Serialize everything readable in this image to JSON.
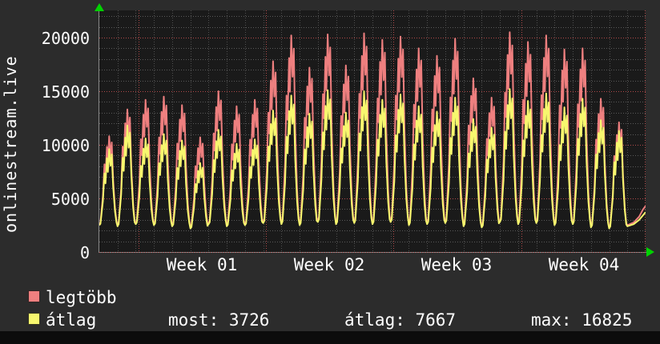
{
  "window": {
    "background": "#0c0c0c",
    "canvas_background": "#2c2c2c",
    "plot_background": "#1a1a1a"
  },
  "vertical_label": "onlinestream.live",
  "y_axis": {
    "ticks": [
      "20000",
      "15000",
      "10000",
      "5000",
      "0"
    ]
  },
  "x_axis": {
    "ticks": [
      "Week 01",
      "Week 02",
      "Week 03",
      "Week 04"
    ]
  },
  "legend": [
    {
      "label": "legtöbb",
      "color": "#ee7f7f"
    },
    {
      "label": "átlag",
      "color": "#f7f76e"
    }
  ],
  "stats": [
    {
      "text": "most: 3726"
    },
    {
      "text": "átlag: 7667"
    },
    {
      "text": "max: 16825"
    }
  ],
  "icons": {
    "y_axis_arrow": "green-up-arrow",
    "x_axis_arrow": "green-right-arrow"
  },
  "colors": {
    "series_max": "#ee7f7f",
    "series_avg": "#f7f76e",
    "grid_minor": "#5a5a5a",
    "grid_major": "#b34a4a",
    "axis": "#8a8a8a",
    "arrow": "#00d200",
    "text": "#ffffff"
  },
  "chart_data": {
    "type": "line",
    "title": "",
    "vertical_label": "onlinestream.live",
    "xlabel_ticks": [
      "Week 01",
      "Week 02",
      "Week 03",
      "Week 04"
    ],
    "x_span_days": 30,
    "x_minor_grid_days": 1,
    "x_major_grid_days": [
      2.16,
      9.16,
      16.16,
      23.16,
      30
    ],
    "ylim": [
      0,
      22500
    ],
    "y_major_step": 5000,
    "y_minor_step": 1000,
    "grid": true,
    "legend_position": "bottom-left",
    "end_values": {
      "most": 3726,
      "atlag": 7667,
      "max": 16825
    },
    "series": [
      {
        "name": "legtöbb",
        "color": "#ee7f7f",
        "day_peaks": [
          10800,
          13300,
          14200,
          14500,
          13700,
          10700,
          15000,
          13600,
          14200,
          17800,
          20200,
          17200,
          20300,
          17400,
          20400,
          19800,
          20100,
          19000,
          18300,
          19900,
          16200,
          14400,
          20500,
          19600,
          20200,
          18900,
          19000,
          14300,
          12100
        ],
        "day_valleys": [
          2600,
          2500,
          2700,
          2600,
          2500,
          2300,
          2700,
          2500,
          2600,
          2800,
          2700,
          2600,
          2900,
          2700,
          2800,
          2700,
          2900,
          2600,
          2700,
          2800,
          2500,
          2400,
          2900,
          2700,
          2800,
          2600,
          2700,
          2400,
          2300
        ],
        "final_partial_day": [
          [
            29,
            2500
          ],
          [
            29.35,
            2750
          ],
          [
            29.65,
            3300
          ],
          [
            29.85,
            3950
          ],
          [
            30,
            4300
          ]
        ]
      },
      {
        "name": "átlag",
        "color": "#f7f76e",
        "day_peaks": [
          9600,
          11800,
          10600,
          11000,
          10400,
          8300,
          11400,
          10100,
          10500,
          13200,
          14600,
          12900,
          15100,
          13000,
          15000,
          14200,
          14700,
          13600,
          13100,
          14400,
          12400,
          11600,
          15200,
          14100,
          14800,
          13500,
          14300,
          12300,
          11300
        ],
        "day_valleys": [
          2500,
          2400,
          2600,
          2500,
          2400,
          2200,
          2600,
          2400,
          2500,
          2700,
          2600,
          2500,
          2800,
          2600,
          2700,
          2600,
          2800,
          2500,
          2600,
          2700,
          2400,
          2300,
          2800,
          2600,
          2700,
          2500,
          2600,
          2300,
          2200
        ],
        "final_partial_day": [
          [
            29,
            2400
          ],
          [
            29.35,
            2600
          ],
          [
            29.65,
            3000
          ],
          [
            29.85,
            3400
          ],
          [
            30,
            3726
          ]
        ]
      }
    ],
    "intraday_profile": [
      [
        0,
        0
      ],
      [
        0.06,
        0.02
      ],
      [
        0.2,
        0.32
      ],
      [
        0.28,
        0.68
      ],
      [
        0.34,
        0.55
      ],
      [
        0.42,
        0.88
      ],
      [
        0.47,
        0.7
      ],
      [
        0.54,
        1.0
      ],
      [
        0.61,
        0.78
      ],
      [
        0.68,
        0.93
      ],
      [
        0.76,
        0.5
      ],
      [
        0.86,
        0.18
      ],
      [
        0.94,
        0.04
      ]
    ]
  }
}
